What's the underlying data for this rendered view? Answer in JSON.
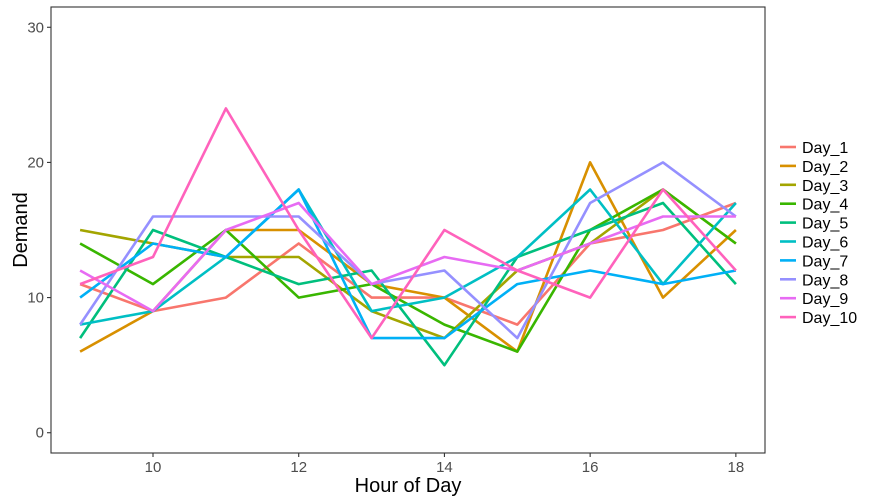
{
  "chart_data": {
    "type": "line",
    "title": "",
    "xlabel": "Hour of Day",
    "ylabel": "Demand",
    "xlim": [
      8.6,
      18.4
    ],
    "ylim": [
      -1.5,
      31.5
    ],
    "x_ticks": [
      10,
      12,
      14,
      16,
      18
    ],
    "y_ticks": [
      0,
      10,
      20,
      30
    ],
    "grid": false,
    "legend_position": "right",
    "x": [
      9,
      10,
      11,
      12,
      13,
      14,
      15,
      16,
      17,
      18
    ],
    "series": [
      {
        "name": "Day_1",
        "color": "#F8766D",
        "values": [
          11,
          9,
          10,
          14,
          10,
          10,
          8,
          14,
          15,
          17
        ]
      },
      {
        "name": "Day_2",
        "color": "#D89000",
        "values": [
          6,
          9,
          15,
          15,
          11,
          10,
          6,
          20,
          10,
          15
        ]
      },
      {
        "name": "Day_3",
        "color": "#A3A500",
        "values": [
          15,
          14,
          13,
          13,
          9,
          7,
          12,
          14,
          18,
          14
        ]
      },
      {
        "name": "Day_4",
        "color": "#39B600",
        "values": [
          14,
          11,
          15,
          10,
          11,
          8,
          6,
          15,
          18,
          14
        ]
      },
      {
        "name": "Day_5",
        "color": "#00BF7D",
        "values": [
          7,
          15,
          13,
          11,
          12,
          5,
          13,
          15,
          17,
          11
        ]
      },
      {
        "name": "Day_6",
        "color": "#00BFC4",
        "values": [
          8,
          9,
          13,
          18,
          9,
          10,
          13,
          18,
          11,
          17
        ]
      },
      {
        "name": "Day_7",
        "color": "#00B0F6",
        "values": [
          10,
          14,
          13,
          18,
          7,
          7,
          11,
          12,
          11,
          12
        ]
      },
      {
        "name": "Day_8",
        "color": "#9590FF",
        "values": [
          8,
          16,
          16,
          16,
          11,
          12,
          7,
          17,
          20,
          16
        ]
      },
      {
        "name": "Day_9",
        "color": "#E76BF3",
        "values": [
          12,
          9,
          15,
          17,
          11,
          13,
          12,
          14,
          16,
          16
        ]
      },
      {
        "name": "Day_10",
        "color": "#FF62BC",
        "values": [
          11,
          13,
          24,
          15,
          7,
          15,
          12,
          10,
          18,
          12
        ]
      }
    ]
  }
}
